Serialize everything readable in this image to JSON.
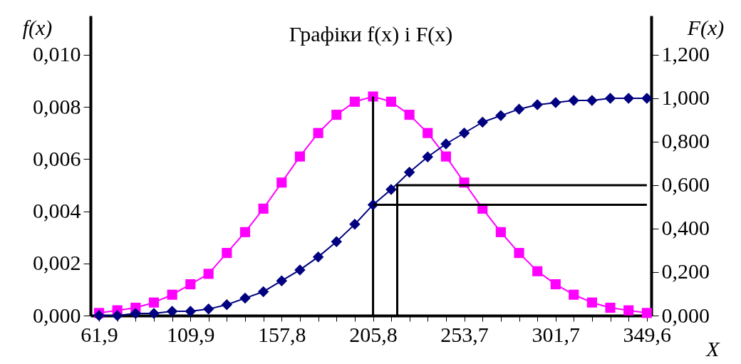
{
  "chart_data": {
    "type": "line",
    "title": "Графіки f(x) і F(x)",
    "xlabel": "X",
    "ylabel": "f(x)",
    "y2label": "F(x)",
    "x": [
      61.9,
      71.5,
      81.1,
      90.7,
      100.3,
      109.9,
      119.4,
      129.0,
      138.6,
      148.2,
      157.8,
      167.4,
      177.0,
      186.6,
      196.2,
      205.8,
      215.3,
      224.9,
      234.5,
      244.1,
      253.7,
      263.3,
      272.9,
      282.5,
      292.1,
      301.7,
      311.2,
      320.8,
      330.4,
      340.0,
      349.6
    ],
    "series": [
      {
        "color": "#ff00ff",
        "marker": "square",
        "values": [
          0.0001,
          0.0002,
          0.0003,
          0.0005,
          0.0008,
          0.0012,
          0.0016,
          0.0024,
          0.0032,
          0.0041,
          0.0051,
          0.0061,
          0.007,
          0.0077,
          0.0082,
          0.0084,
          0.0082,
          0.0077,
          0.007,
          0.0061,
          0.0051,
          0.0041,
          0.0032,
          0.0024,
          0.0017,
          0.0012,
          0.0008,
          0.0005,
          0.0003,
          0.0002,
          0.0001
        ]
      },
      {
        "color": "#000080",
        "marker": "diamond",
        "axis": "y2",
        "values": [
          0.0,
          0.0,
          0.01,
          0.01,
          0.02,
          0.02,
          0.03,
          0.05,
          0.08,
          0.11,
          0.16,
          0.21,
          0.27,
          0.34,
          0.42,
          0.51,
          0.58,
          0.66,
          0.73,
          0.79,
          0.84,
          0.89,
          0.92,
          0.95,
          0.97,
          0.98,
          0.99,
          0.99,
          1.0,
          1.0,
          1.0
        ]
      },
      {
        "color": "#000000",
        "marker": "none",
        "x": [
          205.8,
          205.8
        ],
        "values": [
          0.0084,
          0.0
        ]
      },
      {
        "color": "#000000",
        "marker": "none",
        "axis": "y2",
        "x": [
          205.8,
          349.6
        ],
        "values": [
          0.51,
          0.51
        ]
      },
      {
        "color": "#000000",
        "marker": "none",
        "axis": "y2",
        "x": [
          349.6,
          218.5,
          218.5
        ],
        "values": [
          0.6,
          0.6,
          0.0
        ]
      }
    ],
    "xlim": [
      57.4,
      351.9
    ],
    "ylim": [
      0,
      0.0115
    ],
    "y2lim": [
      0,
      1.38
    ],
    "xticks": [
      {
        "value": 61.9,
        "label": "61,9"
      },
      {
        "value": 71.5,
        "label": null
      },
      {
        "value": 81.1,
        "label": null
      },
      {
        "value": 90.7,
        "label": null
      },
      {
        "value": 100.3,
        "label": null
      },
      {
        "value": 109.9,
        "label": "109,9"
      },
      {
        "value": 119.4,
        "label": null
      },
      {
        "value": 129.0,
        "label": null
      },
      {
        "value": 138.6,
        "label": null
      },
      {
        "value": 148.2,
        "label": null
      },
      {
        "value": 157.8,
        "label": "157,8"
      },
      {
        "value": 167.4,
        "label": null
      },
      {
        "value": 177.0,
        "label": null
      },
      {
        "value": 186.6,
        "label": null
      },
      {
        "value": 196.2,
        "label": null
      },
      {
        "value": 205.8,
        "label": "205,8"
      },
      {
        "value": 215.3,
        "label": null
      },
      {
        "value": 224.9,
        "label": null
      },
      {
        "value": 234.5,
        "label": null
      },
      {
        "value": 244.1,
        "label": null
      },
      {
        "value": 253.7,
        "label": "253,7"
      },
      {
        "value": 263.3,
        "label": null
      },
      {
        "value": 272.9,
        "label": null
      },
      {
        "value": 282.5,
        "label": null
      },
      {
        "value": 292.1,
        "label": null
      },
      {
        "value": 301.7,
        "label": "301,7"
      },
      {
        "value": 311.2,
        "label": null
      },
      {
        "value": 320.8,
        "label": null
      },
      {
        "value": 330.4,
        "label": null
      },
      {
        "value": 340.0,
        "label": null
      },
      {
        "value": 349.6,
        "label": "349,6"
      }
    ],
    "yticks": [
      {
        "value": 0,
        "label": "0,000"
      },
      {
        "value": 0.002,
        "label": "0,002"
      },
      {
        "value": 0.004,
        "label": "0,004"
      },
      {
        "value": 0.006,
        "label": "0,006"
      },
      {
        "value": 0.008,
        "label": "0,008"
      },
      {
        "value": 0.01,
        "label": "0,010"
      }
    ],
    "y2ticks": [
      {
        "value": 0,
        "label": "0,000"
      },
      {
        "value": 0.2,
        "label": "0,200"
      },
      {
        "value": 0.4,
        "label": "0,400"
      },
      {
        "value": 0.6,
        "label": "0,600"
      },
      {
        "value": 0.8,
        "label": "0,800"
      },
      {
        "value": 1.0,
        "label": "1,000"
      },
      {
        "value": 1.2,
        "label": "1,200"
      }
    ],
    "grid": false
  }
}
